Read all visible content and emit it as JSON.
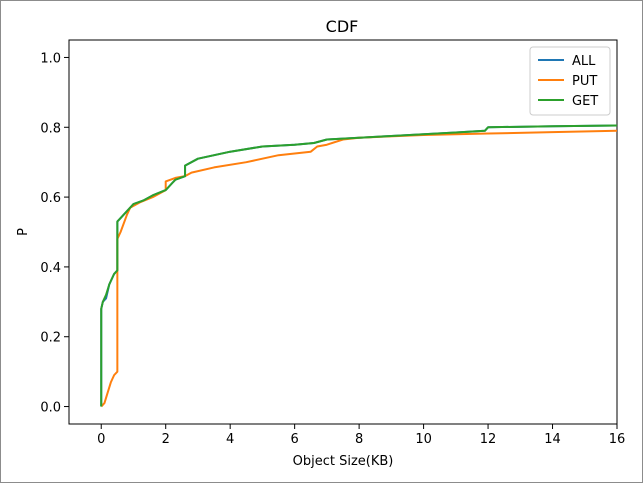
{
  "chart_data": {
    "type": "line",
    "title": "CDF",
    "xlabel": "Object Size(KB)",
    "ylabel": "P",
    "xlim": [
      -1,
      16
    ],
    "ylim": [
      -0.05,
      1.05
    ],
    "xticks": [
      0,
      2,
      4,
      6,
      8,
      10,
      12,
      14,
      16
    ],
    "yticks": [
      0.0,
      0.2,
      0.4,
      0.6,
      0.8,
      1.0
    ],
    "xtick_labels": [
      "0",
      "2",
      "4",
      "6",
      "8",
      "10",
      "12",
      "14",
      "16"
    ],
    "ytick_labels": [
      "0.0",
      "0.2",
      "0.4",
      "0.6",
      "0.8",
      "1.0"
    ],
    "grid": false,
    "legend_position": "top-right",
    "series": [
      {
        "name": "ALL",
        "color": "#1f77b4",
        "points": [
          [
            0,
            0.0
          ],
          [
            0,
            0.28
          ],
          [
            0.05,
            0.3
          ],
          [
            0.15,
            0.31
          ],
          [
            0.25,
            0.35
          ],
          [
            0.4,
            0.38
          ],
          [
            0.5,
            0.39
          ],
          [
            0.5,
            0.53
          ],
          [
            0.6,
            0.54
          ],
          [
            0.8,
            0.56
          ],
          [
            1.0,
            0.58
          ],
          [
            1.3,
            0.59
          ],
          [
            1.6,
            0.605
          ],
          [
            2.0,
            0.62
          ],
          [
            2.1,
            0.63
          ],
          [
            2.2,
            0.64
          ],
          [
            2.3,
            0.65
          ],
          [
            2.6,
            0.66
          ],
          [
            2.6,
            0.69
          ],
          [
            3.0,
            0.71
          ],
          [
            3.5,
            0.72
          ],
          [
            4.0,
            0.73
          ],
          [
            5.0,
            0.745
          ],
          [
            6.0,
            0.75
          ],
          [
            6.6,
            0.755
          ],
          [
            7.0,
            0.765
          ],
          [
            8.0,
            0.77
          ],
          [
            9.0,
            0.775
          ],
          [
            10.0,
            0.78
          ],
          [
            11.0,
            0.785
          ],
          [
            11.9,
            0.79
          ],
          [
            12.0,
            0.8
          ],
          [
            14.0,
            0.803
          ],
          [
            16.0,
            0.805
          ]
        ]
      },
      {
        "name": "PUT",
        "color": "#ff7f0e",
        "points": [
          [
            0,
            0.0
          ],
          [
            0.1,
            0.01
          ],
          [
            0.2,
            0.04
          ],
          [
            0.3,
            0.07
          ],
          [
            0.4,
            0.09
          ],
          [
            0.5,
            0.1
          ],
          [
            0.5,
            0.48
          ],
          [
            0.6,
            0.5
          ],
          [
            0.8,
            0.55
          ],
          [
            0.9,
            0.57
          ],
          [
            1.2,
            0.585
          ],
          [
            1.6,
            0.6
          ],
          [
            2.0,
            0.62
          ],
          [
            2.0,
            0.645
          ],
          [
            2.3,
            0.655
          ],
          [
            2.6,
            0.66
          ],
          [
            2.8,
            0.67
          ],
          [
            3.5,
            0.685
          ],
          [
            4.5,
            0.7
          ],
          [
            5.5,
            0.72
          ],
          [
            6.5,
            0.73
          ],
          [
            6.7,
            0.745
          ],
          [
            7.0,
            0.75
          ],
          [
            7.5,
            0.765
          ],
          [
            8.0,
            0.77
          ],
          [
            10.0,
            0.778
          ],
          [
            12.0,
            0.782
          ],
          [
            14.0,
            0.786
          ],
          [
            16.0,
            0.79
          ]
        ]
      },
      {
        "name": "GET",
        "color": "#2ca02c",
        "points": [
          [
            0,
            0.0
          ],
          [
            0,
            0.28
          ],
          [
            0.05,
            0.3
          ],
          [
            0.15,
            0.32
          ],
          [
            0.25,
            0.35
          ],
          [
            0.4,
            0.38
          ],
          [
            0.5,
            0.39
          ],
          [
            0.5,
            0.53
          ],
          [
            0.6,
            0.54
          ],
          [
            0.8,
            0.56
          ],
          [
            1.0,
            0.58
          ],
          [
            1.3,
            0.59
          ],
          [
            1.6,
            0.605
          ],
          [
            2.0,
            0.62
          ],
          [
            2.1,
            0.63
          ],
          [
            2.2,
            0.64
          ],
          [
            2.3,
            0.65
          ],
          [
            2.6,
            0.66
          ],
          [
            2.6,
            0.69
          ],
          [
            3.0,
            0.71
          ],
          [
            3.5,
            0.72
          ],
          [
            4.0,
            0.73
          ],
          [
            5.0,
            0.745
          ],
          [
            6.0,
            0.75
          ],
          [
            6.6,
            0.755
          ],
          [
            7.0,
            0.765
          ],
          [
            8.0,
            0.77
          ],
          [
            9.0,
            0.775
          ],
          [
            10.0,
            0.78
          ],
          [
            11.0,
            0.785
          ],
          [
            11.9,
            0.79
          ],
          [
            12.0,
            0.8
          ],
          [
            14.0,
            0.803
          ],
          [
            16.0,
            0.805
          ]
        ]
      }
    ]
  }
}
